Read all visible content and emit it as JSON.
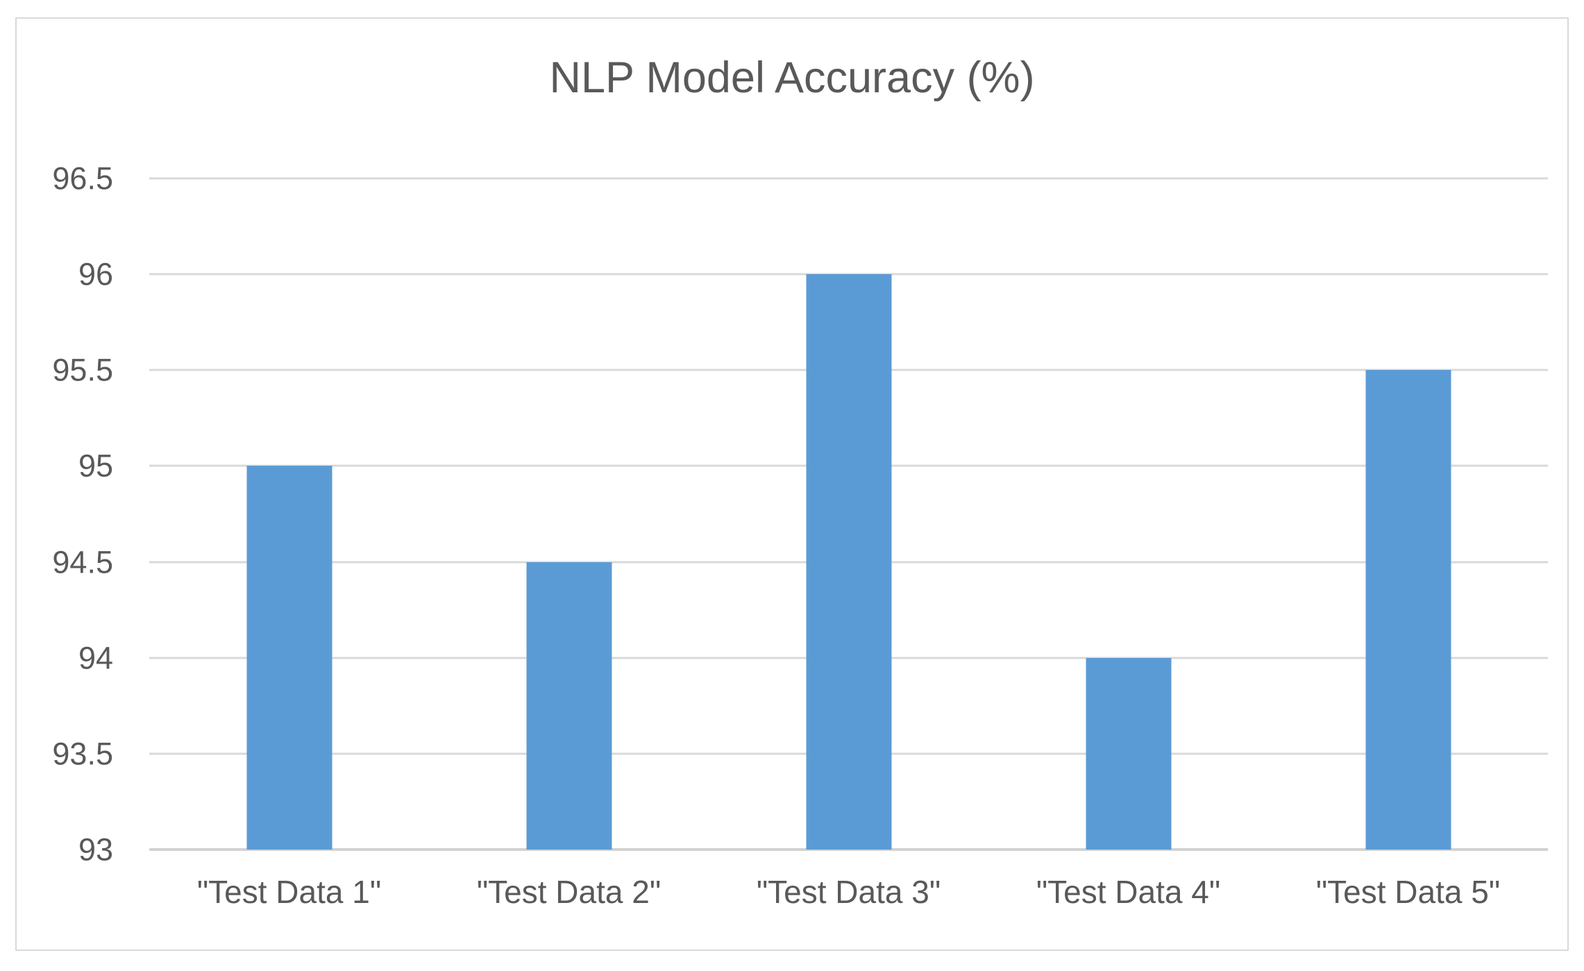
{
  "chart_data": {
    "type": "bar",
    "title": "NLP Model Accuracy (%)",
    "categories": [
      "\"Test Data 1\"",
      "\"Test Data 2\"",
      "\"Test Data 3\"",
      "\"Test Data 4\"",
      "\"Test Data 5\""
    ],
    "values": [
      95,
      94.5,
      96,
      94,
      95.5
    ],
    "xlabel": "",
    "ylabel": "",
    "ylim": [
      93,
      96.5
    ],
    "yticks": [
      93,
      93.5,
      94,
      94.5,
      95,
      95.5,
      96,
      96.5
    ],
    "ytick_labels": [
      "93",
      "93.5",
      "94",
      "94.5",
      "95",
      "95.5",
      "96",
      "96.5"
    ],
    "grid": true,
    "legend_position": "none",
    "bar_color": "#5B9BD5"
  },
  "colors": {
    "bar": "#5B9BD5",
    "text": "#595959",
    "gridline": "#D9D9D9",
    "axis_line": "#D2D2D2",
    "frame_border": "#D9D9D9",
    "background": "#FFFFFF"
  }
}
